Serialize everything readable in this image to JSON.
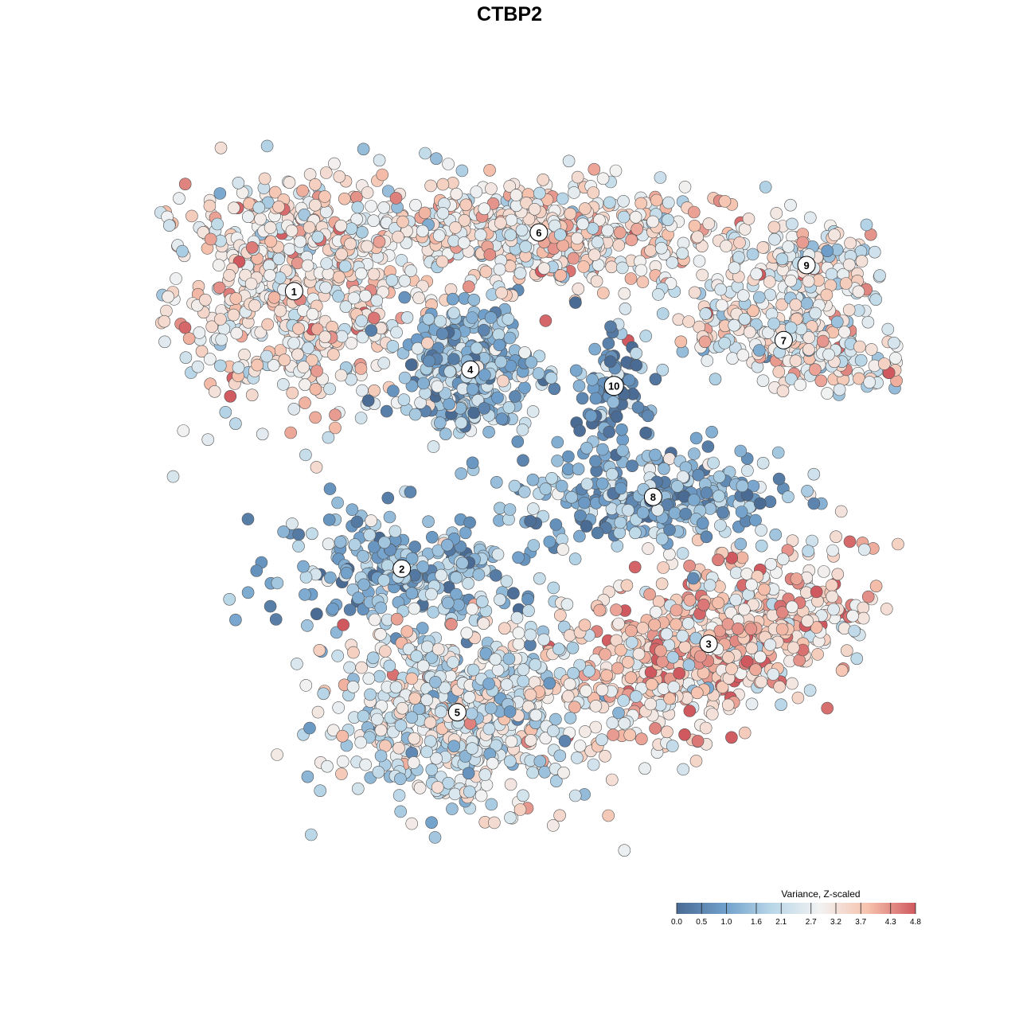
{
  "chart_data": {
    "type": "scatter",
    "title": "CTBP2",
    "xlabel": "",
    "ylabel": "",
    "color_scale": {
      "title": "Variance, Z-scaled",
      "min": 0.0,
      "max": 4.8,
      "ticks": [
        "0.0",
        "0.5",
        "1.0",
        "1.6",
        "2.1",
        "2.7",
        "3.2",
        "3.7",
        "4.3",
        "4.8"
      ],
      "tick_values": [
        0.0,
        0.5,
        1.0,
        1.6,
        2.1,
        2.7,
        3.2,
        3.7,
        4.3,
        4.8
      ],
      "colors": [
        "#4a6b94",
        "#6f9fca",
        "#b9d7e8",
        "#f2f2f2",
        "#f6c2ad",
        "#d0595f"
      ],
      "placement": "bottom-right"
    },
    "clusters": [
      {
        "label": "1",
        "x": -6.6,
        "y": 6.2,
        "mean_value": 3.1
      },
      {
        "label": "2",
        "x": -3.3,
        "y": -2.3,
        "mean_value": 1.3
      },
      {
        "label": "3",
        "x": 6.1,
        "y": -4.6,
        "mean_value": 3.4
      },
      {
        "label": "4",
        "x": -1.2,
        "y": 3.8,
        "mean_value": 1.5
      },
      {
        "label": "5",
        "x": -1.6,
        "y": -6.7,
        "mean_value": 2.5
      },
      {
        "label": "6",
        "x": 0.9,
        "y": 8.0,
        "mean_value": 3.1
      },
      {
        "label": "7",
        "x": 8.4,
        "y": 4.7,
        "mean_value": 2.8
      },
      {
        "label": "8",
        "x": 4.4,
        "y": -0.1,
        "mean_value": 1.3
      },
      {
        "label": "9",
        "x": 9.1,
        "y": 7.0,
        "mean_value": 2.8
      },
      {
        "label": "10",
        "x": 3.2,
        "y": 3.3,
        "mean_value": 0.7
      }
    ]
  }
}
